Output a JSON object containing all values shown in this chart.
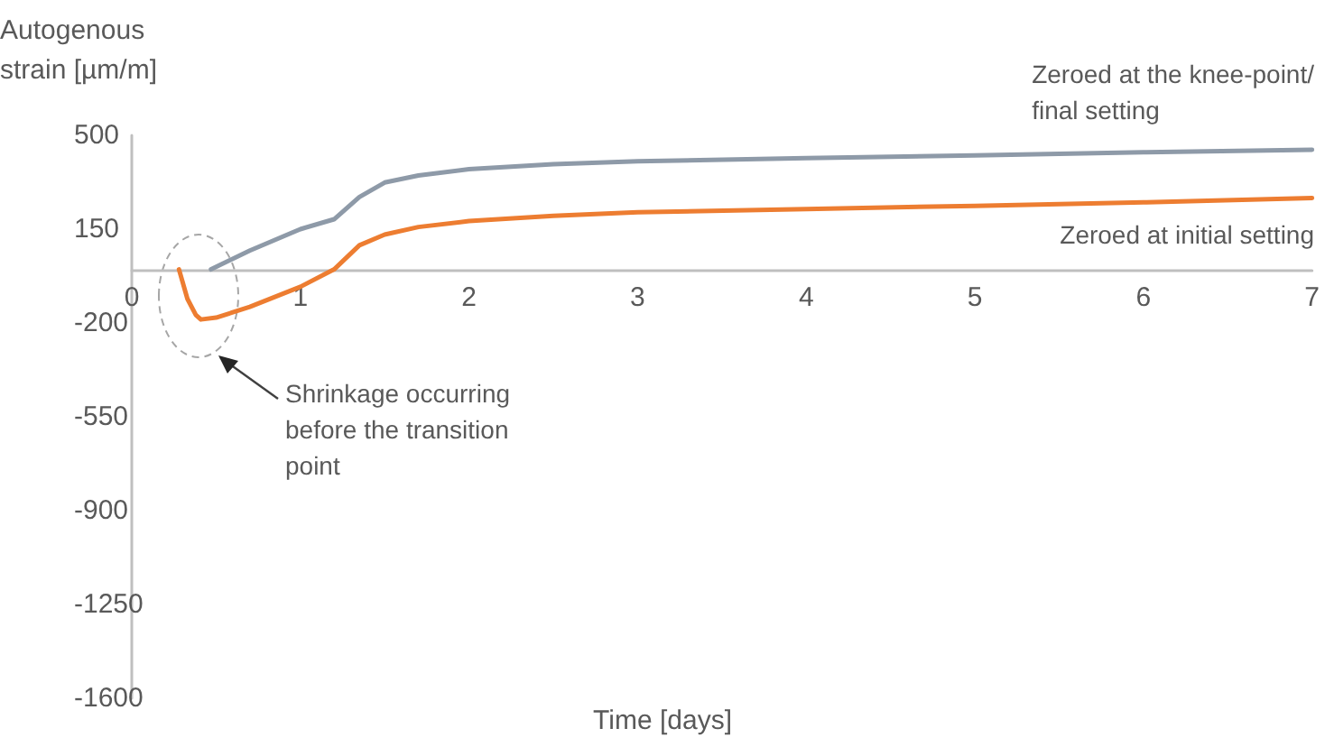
{
  "chart_data": {
    "type": "line",
    "ylabel": "Autogenous strain [µm/m]",
    "xlabel": "Time [days]",
    "xlim": [
      0,
      7
    ],
    "xticks": [
      0,
      1,
      2,
      3,
      4,
      5,
      6,
      7
    ],
    "ylim": [
      -1600,
      500
    ],
    "yticks": [
      -1600,
      -1250,
      -900,
      -550,
      -200,
      150,
      500
    ],
    "grid": false,
    "legend": false,
    "marker": "none",
    "line_style": "solid",
    "series": [
      {
        "name": "Zeroed at the knee-point/ final setting",
        "color": "#8e9aa8",
        "x": [
          0.47,
          0.7,
          1.0,
          1.2,
          1.35,
          1.5,
          1.7,
          2.0,
          2.5,
          3.0,
          4.0,
          5.0,
          6.0,
          7.0
        ],
        "values": [
          0,
          70,
          150,
          187,
          270,
          324,
          350,
          374,
          392,
          403,
          415,
          425,
          437,
          446
        ]
      },
      {
        "name": "Zeroed at initial setting",
        "color": "#ed7d31",
        "x": [
          0.28,
          0.33,
          0.38,
          0.41,
          0.5,
          0.7,
          1.0,
          1.2,
          1.35,
          1.5,
          1.7,
          2.0,
          2.5,
          3.0,
          4.0,
          5.0,
          6.0,
          7.0
        ],
        "values": [
          0,
          -110,
          -170,
          -187,
          -180,
          -140,
          -65,
          0,
          90,
          130,
          158,
          180,
          200,
          213,
          225,
          237,
          250,
          266
        ]
      }
    ],
    "annotations": [
      "Shrinkage occurring before the transition point"
    ]
  }
}
